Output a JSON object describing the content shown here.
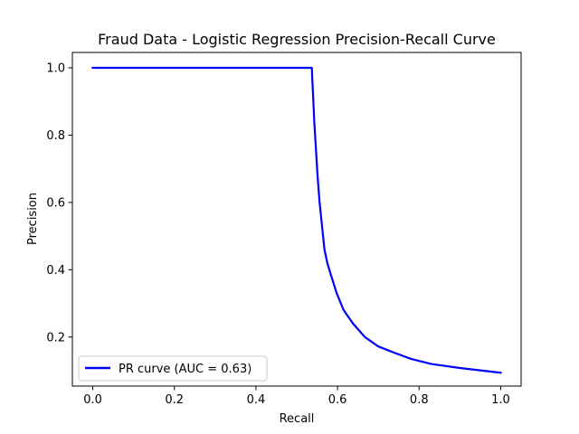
{
  "chart_data": {
    "type": "line",
    "title": "Fraud Data - Logistic Regression Precision-Recall Curve",
    "xlabel": "Recall",
    "ylabel": "Precision",
    "xlim": [
      -0.05,
      1.05
    ],
    "ylim": [
      0.0543,
      1.0457
    ],
    "xticks": [
      0.0,
      0.2,
      0.4,
      0.6,
      0.8,
      1.0
    ],
    "xtick_labels": [
      "0.0",
      "0.2",
      "0.4",
      "0.6",
      "0.8",
      "1.0"
    ],
    "yticks": [
      0.2,
      0.4,
      0.6,
      0.8,
      1.0
    ],
    "ytick_labels": [
      "0.2",
      "0.4",
      "0.6",
      "0.8",
      "1.0"
    ],
    "grid": false,
    "legend_position": "lower-left",
    "series": [
      {
        "name": "PR curve (AUC = 0.63)",
        "color": "#0000ff",
        "x": [
          0.0,
          0.537,
          0.538,
          0.54,
          0.543,
          0.547,
          0.551,
          0.556,
          0.562,
          0.568,
          0.575,
          0.585,
          0.598,
          0.615,
          0.638,
          0.667,
          0.7,
          0.74,
          0.78,
          0.83,
          0.9,
          0.95,
          1.0
        ],
        "y": [
          1.0,
          1.0,
          0.97,
          0.92,
          0.84,
          0.76,
          0.68,
          0.6,
          0.53,
          0.46,
          0.42,
          0.38,
          0.33,
          0.28,
          0.24,
          0.2,
          0.172,
          0.153,
          0.135,
          0.12,
          0.108,
          0.101,
          0.094
        ]
      }
    ]
  }
}
